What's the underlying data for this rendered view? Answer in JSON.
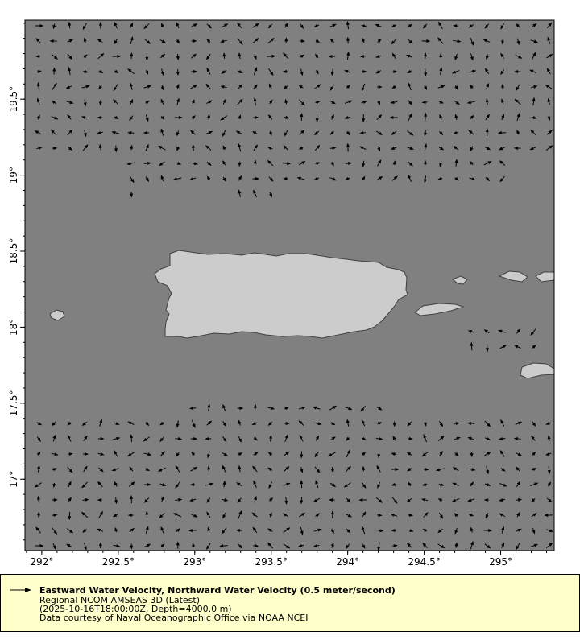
{
  "map": {
    "lon_range": [
      291.89,
      295.35
    ],
    "lat_range": [
      16.53,
      20.02
    ],
    "lon_ticks": [
      "292°",
      "292.5°",
      "293°",
      "293.5°",
      "294°",
      "294.5°",
      "295°"
    ],
    "lat_ticks": [
      "17°",
      "17.5°",
      "18°",
      "18.5°",
      "19°",
      "19.5°"
    ],
    "ocean_color": "#808080",
    "land_color": "#cccccc",
    "arrow_color": "#000000"
  },
  "legend": {
    "title": "Eastward Water Velocity, Northward Water Velocity (0.5 meter/second)",
    "dataset": "Regional NCOM AMSEAS 3D (Latest)",
    "time_depth": "(2025-10-16T18:00:00Z, Depth=4000.0 m)",
    "credit": "Data courtesy of Naval Oceanographic Office via NOAA NCEI",
    "background": "#ffffcc"
  }
}
